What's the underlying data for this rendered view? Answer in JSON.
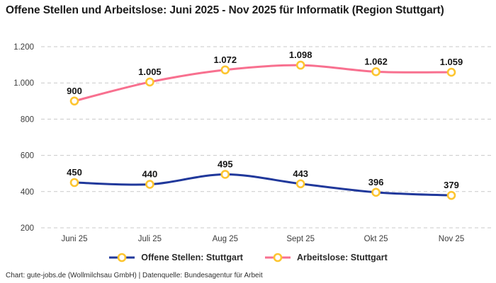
{
  "chart_data": {
    "type": "line",
    "title": "Offene Stellen und Arbeitslose: Juni 2025 - Nov 2025 für Informatik (Region Stuttgart)",
    "categories": [
      "Juni 25",
      "Juli 25",
      "Aug 25",
      "Sept 25",
      "Okt 25",
      "Nov 25"
    ],
    "series": [
      {
        "name": "Offene Stellen: Stuttgart",
        "color": "#20389b",
        "values": [
          450,
          440,
          495,
          443,
          396,
          379
        ],
        "labels": [
          "450",
          "440",
          "495",
          "443",
          "396",
          "379"
        ]
      },
      {
        "name": "Arbeitslose: Stuttgart",
        "color": "#f8708f",
        "values": [
          900,
          1005,
          1072,
          1098,
          1062,
          1059
        ],
        "labels": [
          "900",
          "1.005",
          "1.072",
          "1.098",
          "1.062",
          "1.059"
        ]
      }
    ],
    "y_axis": {
      "min": 200,
      "max": 1200,
      "step": 200,
      "tick_labels": [
        "200",
        "400",
        "600",
        "800",
        "1.000",
        "1.200"
      ]
    },
    "x_axis_label": "",
    "y_axis_label": "",
    "grid": "horizontal-dashed",
    "grid_color": "#c9c9c9",
    "tick_color": "#3c3c3c",
    "data_label_color": "#141414",
    "marker": {
      "fill": "#ffffff",
      "stroke": "#fdc530"
    },
    "legend_position": "bottom"
  },
  "footer": {
    "note": "Chart: gute-jobs.de (Wollmilchsau GmbH) | Datenquelle: Bundesagentur für Arbeit"
  }
}
